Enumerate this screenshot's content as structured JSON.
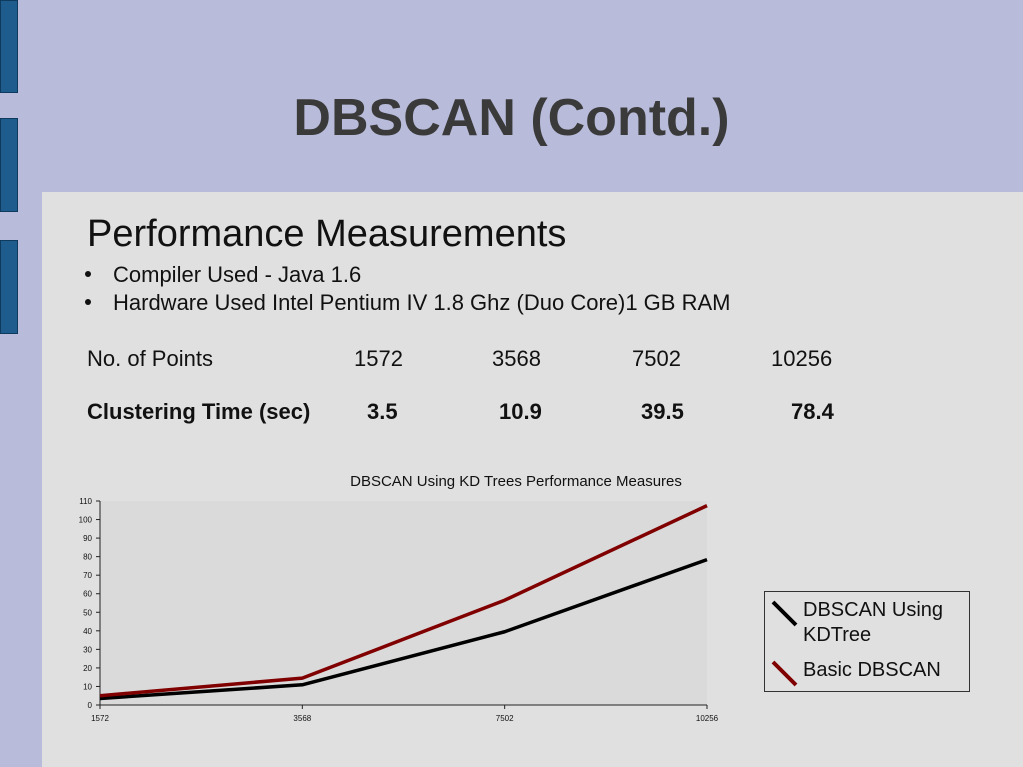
{
  "slide": {
    "title": "DBSCAN (Contd.)",
    "heading": "Performance Measurements",
    "bullets": [
      "Compiler Used - Java 1.6",
      "Hardware Used Intel Pentium IV 1.8 Ghz (Duo Core)1  GB RAM"
    ],
    "points_row": {
      "label": "No. of Points",
      "values": [
        "1572",
        "3568",
        "7502",
        "10256"
      ]
    },
    "time_row": {
      "label": "Clustering Time (sec)",
      "values": [
        "3.5",
        "10.9",
        "39.5",
        "78.4"
      ]
    }
  },
  "chart_data": {
    "type": "line",
    "title": "DBSCAN Using KD Trees Performance Measures",
    "categories": [
      "1572",
      "3568",
      "7502",
      "10256"
    ],
    "ylim": [
      0,
      110
    ],
    "yticks": [
      0,
      10,
      20,
      30,
      40,
      50,
      60,
      70,
      80,
      90,
      100,
      110
    ],
    "grid": false,
    "legend_position": "right",
    "series": [
      {
        "name": "DBSCAN Using KDTree",
        "values": [
          3.5,
          10.9,
          39.5,
          78.4
        ],
        "color": "#000000"
      },
      {
        "name": "Basic DBSCAN",
        "values": [
          5,
          14.5,
          56.5,
          107.5
        ],
        "color": "#800000"
      }
    ]
  }
}
